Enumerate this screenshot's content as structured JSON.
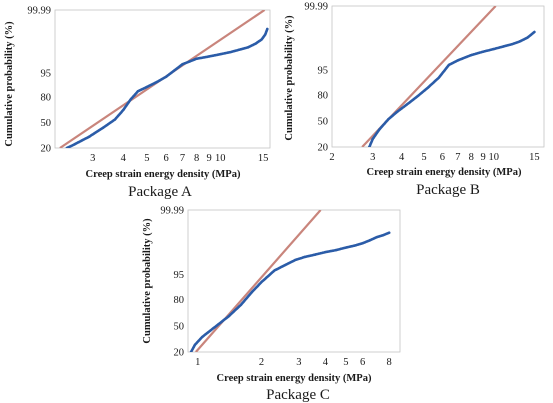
{
  "figure": {
    "colors": {
      "fit_line": "#c9857c",
      "data_points": "#2b5ca8",
      "frame": "#c4c4c4"
    }
  },
  "chart_data": [
    {
      "type": "scatter",
      "title": "",
      "caption": "Package A",
      "xlabel": "Creep strain energy density (MPa)",
      "ylabel": "Cumulative probability (%)",
      "x_scale": "log",
      "y_scale": "probability",
      "xlim": [
        2.1,
        16
      ],
      "ylim": [
        20,
        99.99
      ],
      "x_ticks": [
        3,
        4,
        5,
        6,
        7,
        8,
        9,
        10,
        15
      ],
      "y_ticks": [
        20,
        50,
        80,
        95,
        99.99
      ],
      "grid": false,
      "series": [
        {
          "role": "data",
          "x": [
            2.35,
            2.5,
            2.9,
            3.3,
            3.7,
            4.0,
            4.3,
            4.6,
            5.0,
            5.5,
            6.0,
            6.5,
            7.0,
            8.0,
            9.0,
            10.0,
            11.0,
            12.0,
            13.0,
            14.0,
            14.8,
            15.3,
            15.6
          ],
          "y": [
            20,
            23,
            32,
            43,
            54,
            66,
            78,
            85,
            88,
            91,
            93.5,
            95.8,
            97.3,
            98.25,
            98.55,
            98.8,
            99.0,
            99.2,
            99.35,
            99.55,
            99.7,
            99.82,
            99.9
          ]
        },
        {
          "role": "fit",
          "x": [
            2.2,
            15.2
          ],
          "y": [
            20,
            99.99
          ]
        }
      ]
    },
    {
      "type": "scatter",
      "title": "",
      "caption": "Package B",
      "xlabel": "Creep strain energy density (MPa)",
      "ylabel": "Cumulative probability (%)",
      "x_scale": "log",
      "y_scale": "probability",
      "xlim": [
        2,
        16.5
      ],
      "ylim": [
        20,
        99.99
      ],
      "x_ticks": [
        2,
        3,
        4,
        5,
        6,
        7,
        8,
        9,
        10,
        15
      ],
      "y_ticks": [
        20,
        50,
        80,
        95,
        99.99
      ],
      "grid": false,
      "series": [
        {
          "role": "data",
          "x": [
            2.9,
            3.0,
            3.2,
            3.5,
            3.8,
            4.2,
            4.7,
            5.2,
            5.8,
            6.4,
            7.0,
            8.0,
            9.0,
            10.0,
            11.0,
            12.0,
            13.0,
            14.0,
            15.0
          ],
          "y": [
            20,
            28,
            39,
            52,
            61,
            70,
            79,
            86,
            92,
            96.5,
            97.5,
            98.35,
            98.75,
            99.0,
            99.2,
            99.35,
            99.5,
            99.65,
            99.8
          ]
        },
        {
          "role": "fit",
          "x": [
            2.7,
            10.2
          ],
          "y": [
            20,
            99.99
          ]
        }
      ]
    },
    {
      "type": "scatter",
      "title": "",
      "caption": "Package C",
      "xlabel": "Creep strain energy density (MPa)",
      "ylabel": "Cumulative probability (%)",
      "x_scale": "log",
      "y_scale": "probability",
      "xlim": [
        0.9,
        9
      ],
      "ylim": [
        20,
        99.99
      ],
      "x_ticks": [
        1,
        2,
        3,
        4,
        5,
        6,
        8
      ],
      "y_ticks": [
        20,
        50,
        80,
        95,
        99.99
      ],
      "grid": false,
      "series": [
        {
          "role": "data",
          "x": [
            0.93,
            0.97,
            1.05,
            1.2,
            1.4,
            1.6,
            1.8,
            2.0,
            2.3,
            2.6,
            2.9,
            3.2,
            3.6,
            4.0,
            4.5,
            5.0,
            5.5,
            6.0,
            6.5,
            7.0,
            7.5,
            8.0
          ],
          "y": [
            20,
            27,
            36,
            48,
            62,
            75,
            86,
            92,
            96.2,
            97.5,
            98.3,
            98.65,
            98.9,
            99.1,
            99.25,
            99.4,
            99.5,
            99.6,
            99.7,
            99.78,
            99.82,
            99.86
          ]
        },
        {
          "role": "fit",
          "x": [
            0.98,
            3.8
          ],
          "y": [
            20,
            99.99
          ]
        }
      ]
    }
  ]
}
